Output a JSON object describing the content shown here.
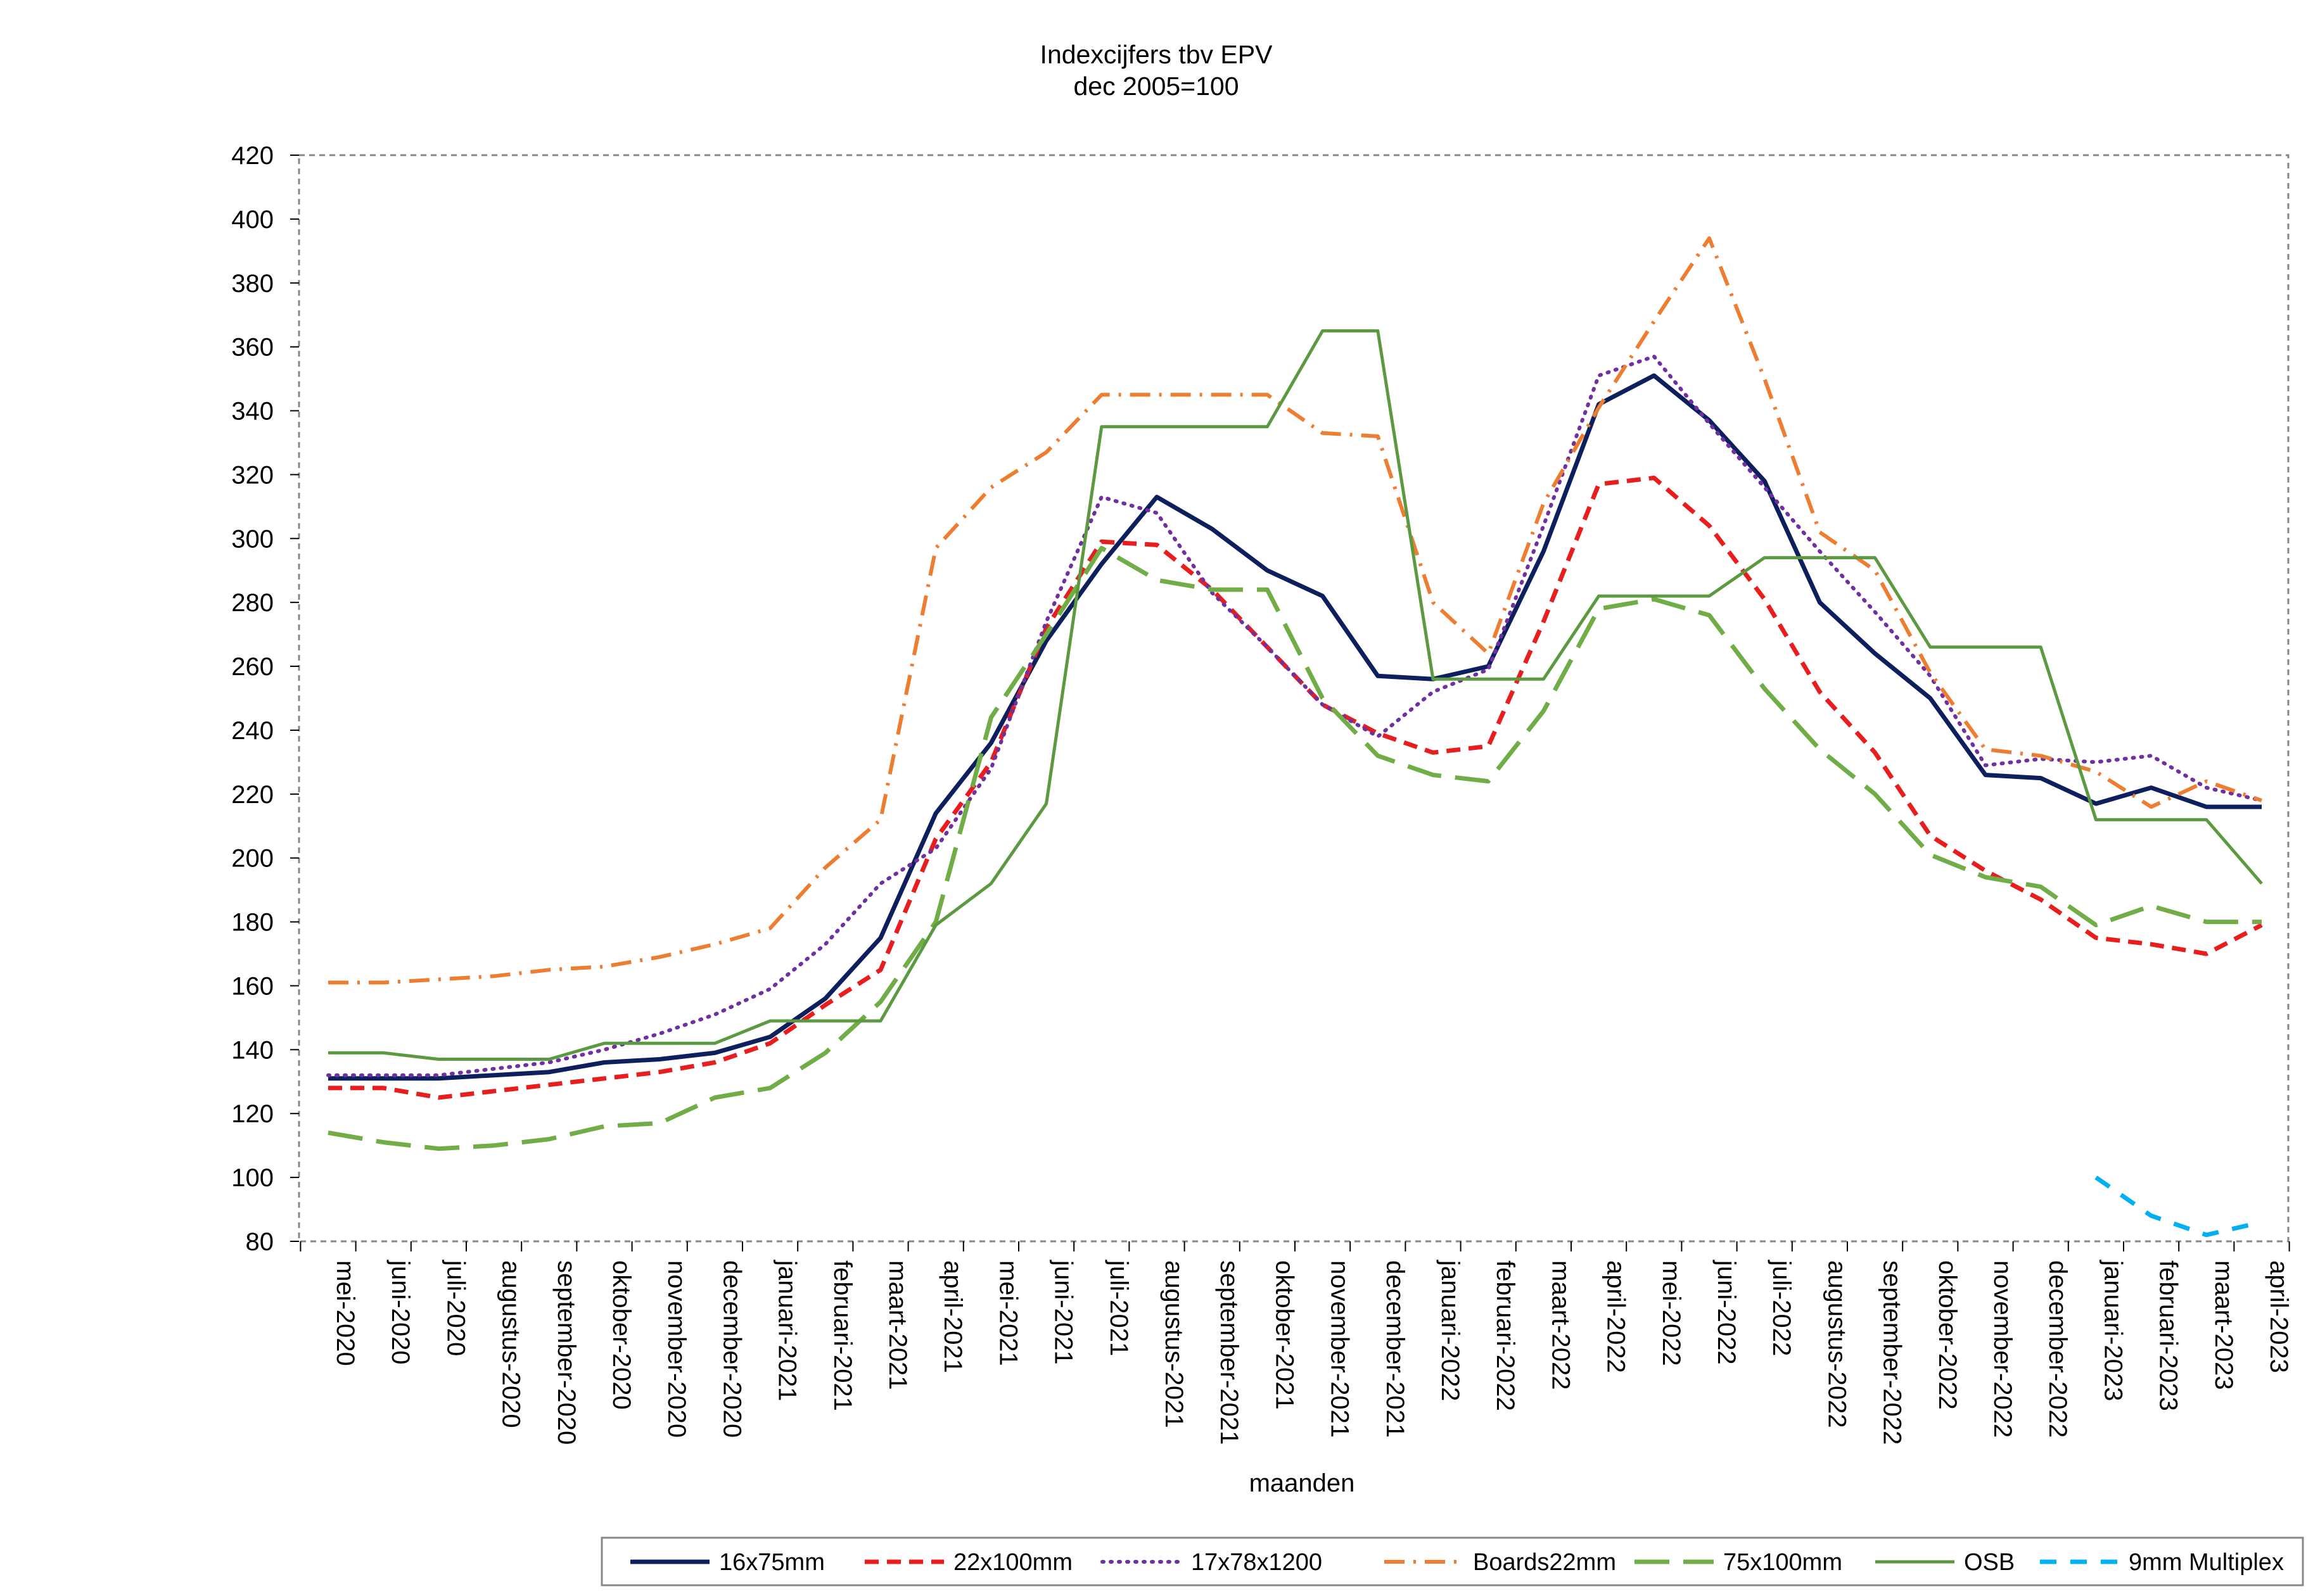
{
  "chart_data": {
    "type": "line",
    "title": "Indexcijfers tbv EPV",
    "subtitle": "dec 2005=100",
    "xlabel": "maanden",
    "ylabel": "",
    "ylim": [
      80,
      420
    ],
    "yticks": [
      80,
      100,
      120,
      140,
      160,
      180,
      200,
      220,
      240,
      260,
      280,
      300,
      320,
      340,
      360,
      380,
      400,
      420
    ],
    "grid": false,
    "legend_position": "bottom",
    "categories": [
      "mei-2020",
      "juni-2020",
      "juli-2020",
      "augustus-2020",
      "september-2020",
      "oktober-2020",
      "november-2020",
      "december-2020",
      "januari-2021",
      "februari-2021",
      "maart-2021",
      "april-2021",
      "mei-2021",
      "juni-2021",
      "juli-2021",
      "augustus-2021",
      "september-2021",
      "oktober-2021",
      "november-2021",
      "december-2021",
      "januari-2022",
      "februari-2022",
      "maart-2022",
      "april-2022",
      "mei-2022",
      "juni-2022",
      "juli-2022",
      "augustus-2022",
      "september-2022",
      "oktober-2022",
      "november-2022",
      "december-2022",
      "januari-2023",
      "februari-2023",
      "maart-2023",
      "april-2023"
    ],
    "series": [
      {
        "name": "16x75mm",
        "color": "#0d1f5c",
        "dash": "solid",
        "width": 7,
        "values": [
          131,
          131,
          131,
          132,
          133,
          136,
          137,
          139,
          144,
          156,
          175,
          214,
          236,
          268,
          292,
          313,
          303,
          290,
          282,
          257,
          256,
          260,
          296,
          342,
          351,
          337,
          318,
          280,
          264,
          250,
          226,
          225,
          217,
          222,
          216,
          216
        ]
      },
      {
        "name": "22x100mm",
        "color": "#e81e1e",
        "dash": "dashed",
        "width": 7,
        "values": [
          128,
          128,
          125,
          127,
          129,
          131,
          133,
          136,
          142,
          154,
          165,
          206,
          230,
          272,
          299,
          298,
          284,
          266,
          248,
          239,
          233,
          235,
          274,
          317,
          319,
          304,
          281,
          252,
          233,
          207,
          196,
          187,
          175,
          173,
          170,
          179
        ]
      },
      {
        "name": "17x78x1200",
        "color": "#7030a0",
        "dash": "dotted",
        "width": 6,
        "values": [
          132,
          132,
          132,
          134,
          136,
          140,
          145,
          151,
          159,
          173,
          192,
          203,
          228,
          274,
          313,
          308,
          283,
          266,
          248,
          238,
          252,
          259,
          304,
          351,
          357,
          336,
          316,
          296,
          277,
          257,
          229,
          231,
          230,
          232,
          222,
          218
        ]
      },
      {
        "name": "Boards22mm",
        "color": "#ed7d31",
        "dash": "dashdot",
        "width": 6,
        "values": [
          161,
          161,
          162,
          163,
          165,
          166,
          169,
          173,
          178,
          197,
          212,
          297,
          316,
          327,
          345,
          345,
          345,
          345,
          333,
          332,
          280,
          264,
          311,
          341,
          368,
          394,
          350,
          302,
          290,
          258,
          234,
          232,
          227,
          216,
          224,
          218
        ]
      },
      {
        "name": "75x100mm",
        "color": "#70ad47",
        "dash": "longdash",
        "width": 7,
        "values": [
          114,
          111,
          109,
          110,
          112,
          116,
          117,
          125,
          128,
          139,
          155,
          180,
          244,
          270,
          297,
          287,
          284,
          284,
          250,
          232,
          226,
          224,
          246,
          278,
          281,
          276,
          253,
          234,
          220,
          201,
          194,
          191,
          179,
          185,
          180,
          180
        ]
      },
      {
        "name": "OSB",
        "color": "#5b9a40",
        "dash": "solid",
        "width": 5,
        "values": [
          139,
          139,
          137,
          137,
          137,
          142,
          142,
          142,
          149,
          149,
          149,
          179,
          192,
          217,
          335,
          335,
          335,
          335,
          365,
          365,
          256,
          256,
          256,
          282,
          282,
          282,
          294,
          294,
          294,
          266,
          266,
          266,
          212,
          212,
          212,
          192
        ]
      },
      {
        "name": "9mm Multiplex",
        "color": "#00b0f0",
        "dash": "dashed-short",
        "width": 7,
        "values": [
          null,
          null,
          null,
          null,
          null,
          null,
          null,
          null,
          null,
          null,
          null,
          null,
          null,
          null,
          null,
          null,
          null,
          null,
          null,
          null,
          null,
          null,
          null,
          null,
          null,
          null,
          null,
          null,
          null,
          null,
          null,
          null,
          100,
          88,
          82,
          86
        ]
      }
    ]
  }
}
